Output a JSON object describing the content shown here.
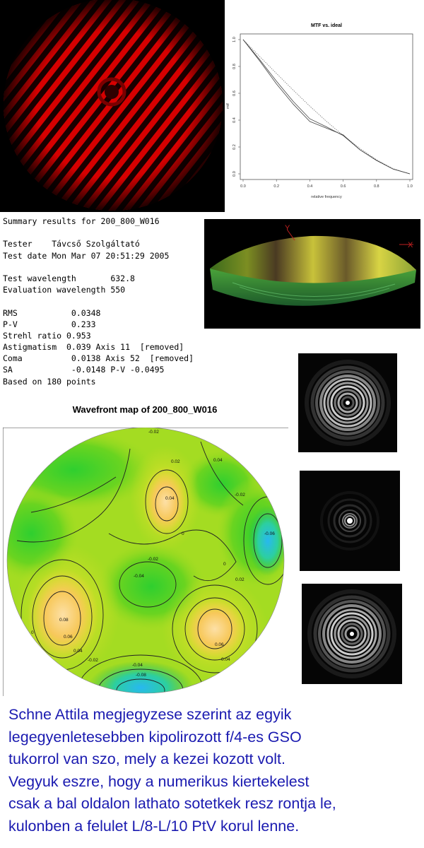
{
  "mtf_chart": {
    "title": "MTF vs. ideal",
    "xlabel": "relative frequency",
    "ylabel": "mtf",
    "x_ticks": [
      "0.0",
      "0.2",
      "0.4",
      "0.6",
      "0.8",
      "1.0"
    ],
    "y_ticks": [
      "0.0",
      "0.2",
      "0.4",
      "0.6",
      "0.8",
      "1.0"
    ]
  },
  "chart_data": {
    "type": "line",
    "title": "MTF vs. ideal",
    "xlabel": "relative frequency",
    "ylabel": "mtf",
    "xlim": [
      0,
      1
    ],
    "ylim": [
      0,
      1
    ],
    "grid": false,
    "series": [
      {
        "style": "dashed",
        "x": [
          0,
          0.1,
          0.2,
          0.3,
          0.4,
          0.5,
          0.6,
          0.7,
          0.8,
          0.9,
          1.0
        ],
        "values": [
          1.0,
          0.873,
          0.748,
          0.624,
          0.504,
          0.391,
          0.286,
          0.19,
          0.105,
          0.038,
          0.0
        ]
      },
      {
        "style": "solid",
        "x": [
          0,
          0.1,
          0.2,
          0.3,
          0.4,
          0.5,
          0.6,
          0.7,
          0.8,
          0.9,
          1.0
        ],
        "values": [
          1.0,
          0.84,
          0.67,
          0.52,
          0.39,
          0.34,
          0.29,
          0.18,
          0.1,
          0.035,
          0.0
        ]
      },
      {
        "style": "solid",
        "x": [
          0,
          0.1,
          0.2,
          0.3,
          0.4,
          0.5,
          0.6,
          0.7,
          0.8,
          0.9,
          1.0
        ],
        "values": [
          1.0,
          0.85,
          0.69,
          0.54,
          0.41,
          0.35,
          0.285,
          0.18,
          0.1,
          0.035,
          0.0
        ]
      }
    ]
  },
  "summary": {
    "title": "Summary results for 200_800_W016",
    "tester": "Tester    Távcső Szolgáltató",
    "test_date": "Test date Mon Mar 07 20:51:29 2005",
    "test_wavelength": "Test wavelength       632.8",
    "eval_wavelength": "Evaluation wavelength 550",
    "rms": "RMS           0.0348",
    "pv": "P-V           0.233",
    "strehl": "Strehl ratio 0.953",
    "astig": "Astigmatism  0.039 Axis 11  [removed]",
    "coma": "Coma          0.0138 Axis 52  [removed]",
    "sa": "SA            -0.0148 P-V -0.0495",
    "based": "Based on 180 points"
  },
  "surface3d": {
    "axis_y": "Y",
    "axis_x": "X"
  },
  "wavefront_map": {
    "title": "Wavefront map of 200_800_W016",
    "contour_labels": [
      "-0.02",
      "0.02",
      "0.04",
      "0.04",
      "-0.02",
      "-0.06",
      "0",
      "-0.02",
      "-0.04",
      "0",
      "0.02",
      "0.08",
      "0.06",
      "0.04",
      "0.02",
      "0.06",
      "0.04",
      "-0.02",
      "-0.04",
      "-0.08",
      "-0.02",
      "0"
    ]
  },
  "note": {
    "lines": [
      "Schne Attila megjegyzese szerint az egyik",
      "legegyenletesebben kipolirozott f/4-es GSO",
      "tukorrol van szo, mely a kezei kozott volt.",
      "Vegyuk eszre, hogy a numerikus kiertekelest",
      "csak a bal oldalon lathato sotetkek resz rontja le,",
      "kulonben a felulet L/8-L/10 PtV korul lenne."
    ]
  }
}
